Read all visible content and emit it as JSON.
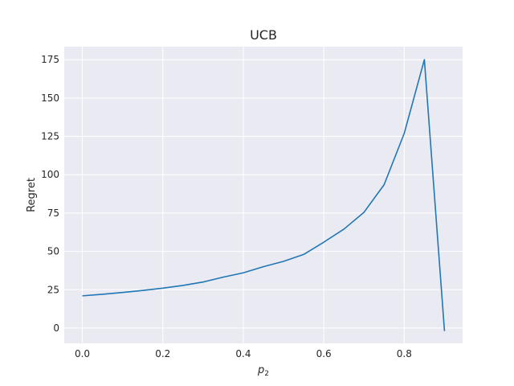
{
  "chart_data": {
    "type": "line",
    "title": "UCB",
    "xlabel_main": "p",
    "xlabel_sub": "2",
    "ylabel": "Regret",
    "xlim": [
      -0.045,
      0.945
    ],
    "ylim": [
      -10,
      183.5
    ],
    "xticks": [
      0.0,
      0.2,
      0.4,
      0.6,
      0.8
    ],
    "xtick_labels": [
      "0.0",
      "0.2",
      "0.4",
      "0.6",
      "0.8"
    ],
    "yticks": [
      0,
      25,
      50,
      75,
      100,
      125,
      150,
      175
    ],
    "ytick_labels": [
      "0",
      "25",
      "50",
      "75",
      "100",
      "125",
      "150",
      "175"
    ],
    "grid": true,
    "background_color": "#eaeaf2",
    "grid_color": "#ffffff",
    "series": [
      {
        "color": "#1f77b4",
        "x": [
          0.0,
          0.05,
          0.1,
          0.15,
          0.2,
          0.25,
          0.3,
          0.35,
          0.4,
          0.45,
          0.5,
          0.55,
          0.6,
          0.65,
          0.7,
          0.75,
          0.8,
          0.85,
          0.9
        ],
        "y": [
          21,
          22,
          23.2,
          24.5,
          26,
          27.8,
          30,
          33.2,
          36,
          40,
          43.5,
          48,
          56,
          64.5,
          75.5,
          93.5,
          127,
          175,
          -2
        ]
      }
    ]
  }
}
